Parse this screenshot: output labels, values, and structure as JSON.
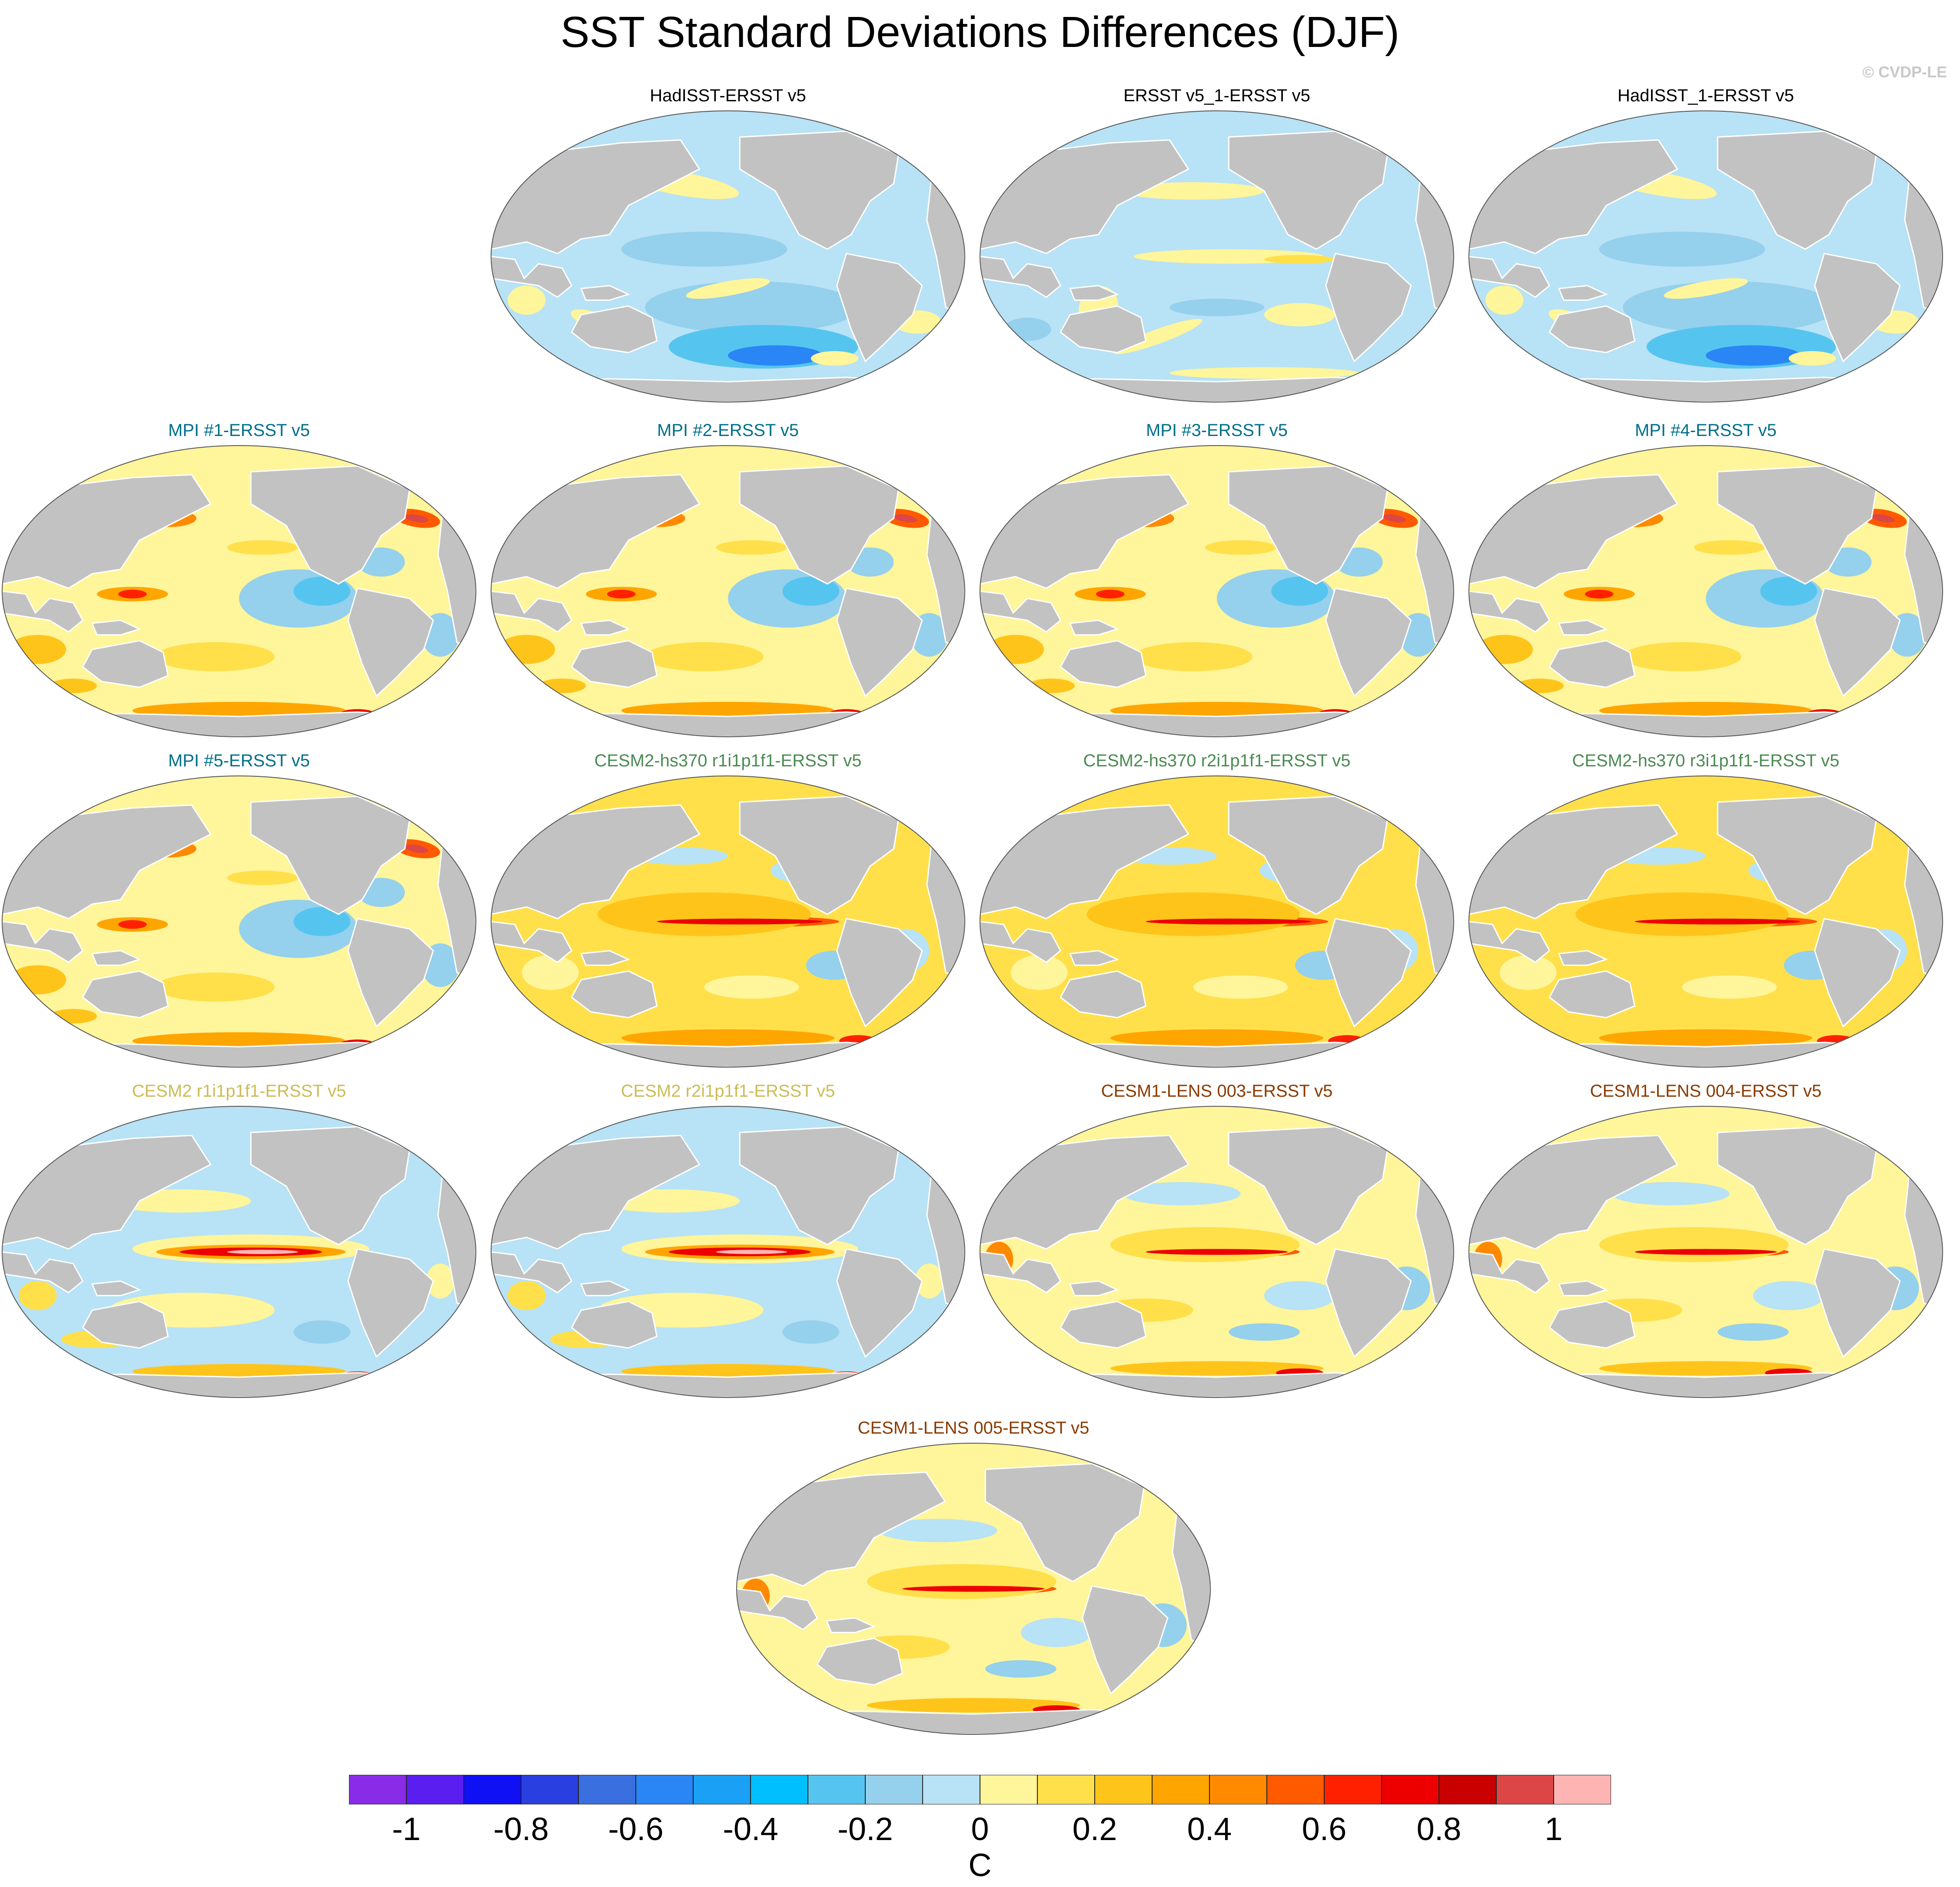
{
  "figure": {
    "title": "SST Standard Deviations Differences (DJF)",
    "credit": "© CVDP-LE",
    "land_color": "#c2c2c2",
    "ocean_base_color": "#b8e2f5"
  },
  "panels": [
    {
      "label": "HadISST-ERSST v5",
      "label_color": "#000000",
      "pattern": "obs_blue"
    },
    {
      "label": "ERSST v5_1-ERSST v5",
      "label_color": "#000000",
      "pattern": "obs_mixed"
    },
    {
      "label": "HadISST_1-ERSST v5",
      "label_color": "#000000",
      "pattern": "obs_blue"
    },
    {
      "label": "MPI #1-ERSST v5",
      "label_color": "#006f8a",
      "pattern": "mpi"
    },
    {
      "label": "MPI #2-ERSST v5",
      "label_color": "#006f8a",
      "pattern": "mpi"
    },
    {
      "label": "MPI #3-ERSST v5",
      "label_color": "#006f8a",
      "pattern": "mpi"
    },
    {
      "label": "MPI #4-ERSST v5",
      "label_color": "#006f8a",
      "pattern": "mpi"
    },
    {
      "label": "MPI #5-ERSST v5",
      "label_color": "#006f8a",
      "pattern": "mpi"
    },
    {
      "label": "CESM2-hs370 r1i1p1f1-ERSST v5",
      "label_color": "#4a8a52",
      "pattern": "cesm_warm"
    },
    {
      "label": "CESM2-hs370 r2i1p1f1-ERSST v5",
      "label_color": "#4a8a52",
      "pattern": "cesm_warm"
    },
    {
      "label": "CESM2-hs370 r3i1p1f1-ERSST v5",
      "label_color": "#4a8a52",
      "pattern": "cesm_warm"
    },
    {
      "label": "CESM2 r1i1p1f1-ERSST v5",
      "label_color": "#cdbb55",
      "pattern": "cesm_enso"
    },
    {
      "label": "CESM2 r2i1p1f1-ERSST v5",
      "label_color": "#cdbb55",
      "pattern": "cesm_enso"
    },
    {
      "label": "CESM1-LENS 003-ERSST v5",
      "label_color": "#8a3a00",
      "pattern": "lens"
    },
    {
      "label": "CESM1-LENS 004-ERSST v5",
      "label_color": "#8a3a00",
      "pattern": "lens"
    },
    {
      "label": "CESM1-LENS 005-ERSST v5",
      "label_color": "#8a3a00",
      "pattern": "lens"
    }
  ],
  "colorbar": {
    "colors": [
      "#8a2be8",
      "#5a1ef0",
      "#1010f5",
      "#2a3fe0",
      "#3a6fe0",
      "#2a85f5",
      "#1aa0f5",
      "#00bfff",
      "#55c5f0",
      "#95d0ed",
      "#b8e2f5",
      "#fff59a",
      "#ffe04a",
      "#ffc41a",
      "#ffa500",
      "#ff8a00",
      "#ff5a00",
      "#ff2000",
      "#ee0000",
      "#c80000",
      "#dc4646",
      "#ffb4b4"
    ],
    "tick_labels": [
      "-1",
      "-0.8",
      "-0.6",
      "-0.4",
      "-0.2",
      "0",
      "0.2",
      "0.4",
      "0.6",
      "0.8",
      "1"
    ],
    "unit": "C"
  }
}
